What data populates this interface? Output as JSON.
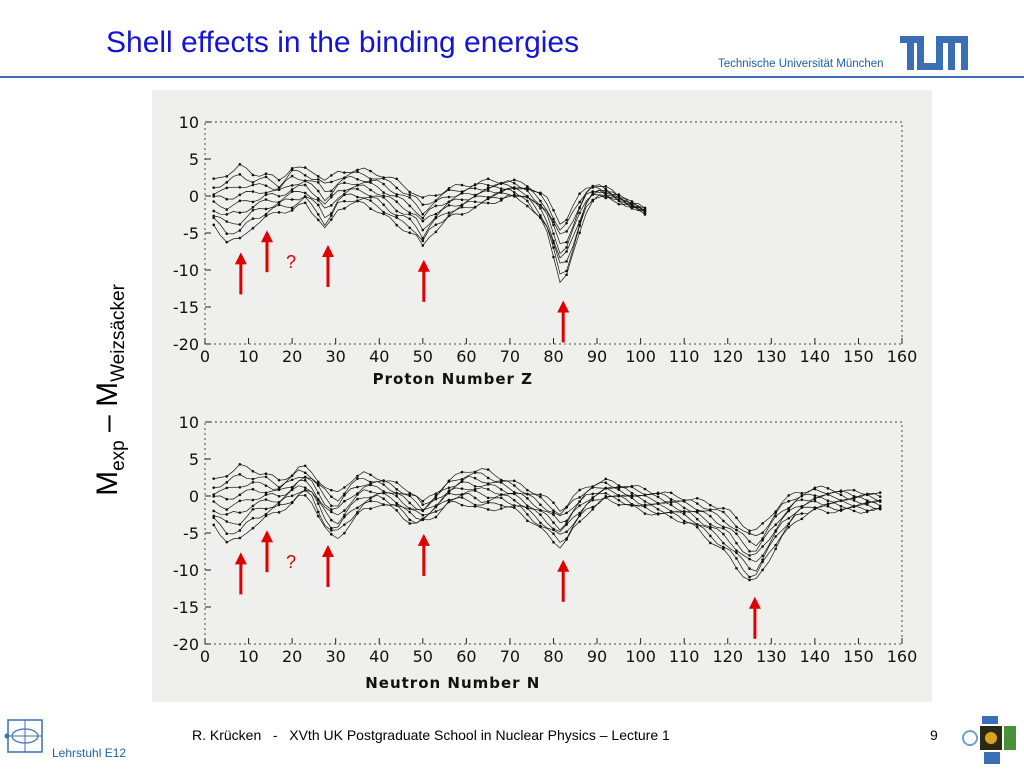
{
  "slide": {
    "title": "Shell effects in the binding energies",
    "university": "Technische Universität München",
    "footer": "R. Krücken   -   XVth UK Postgraduate School in Nuclear Physics – Lecture 1",
    "page_number": "9",
    "chair": "Lehrstuhl E12"
  },
  "y_axis_label": {
    "main": "M",
    "sub1": "exp",
    "dash": " – M",
    "sub2": "Weizsäcker"
  },
  "colors": {
    "title": "#1414d6",
    "accent": "#3b6fb5",
    "arrow": "#e00000",
    "data": "#111111"
  },
  "chart_data": [
    {
      "type": "scatter",
      "xlabel": "Proton Number Z",
      "ylabel": "",
      "xlim": [
        0,
        160
      ],
      "ylim": [
        -20,
        10
      ],
      "xticks": [
        0,
        10,
        20,
        30,
        40,
        50,
        60,
        70,
        80,
        90,
        100,
        110,
        120,
        130,
        140,
        150,
        160
      ],
      "yticks": [
        10,
        5,
        0,
        -5,
        -10,
        -15,
        -20
      ],
      "envelope": {
        "x": [
          2,
          5,
          8,
          11,
          14,
          17,
          20,
          23,
          26,
          28,
          30,
          33,
          36,
          40,
          44,
          48,
          50,
          52,
          56,
          60,
          65,
          70,
          74,
          78,
          80,
          82,
          84,
          86,
          88,
          90,
          94,
          98,
          102
        ],
        "upper": [
          2,
          3,
          4,
          3,
          3,
          2,
          4,
          3.5,
          3,
          2,
          3,
          3.5,
          3.5,
          3,
          2,
          0.5,
          -0.5,
          0,
          1,
          1.5,
          2,
          2,
          1.5,
          0,
          -2,
          -4,
          -2,
          0,
          1.5,
          1.5,
          0.5,
          -1,
          -2
        ],
        "lower": [
          -4,
          -6,
          -6,
          -4,
          -3,
          -2,
          -2,
          -1,
          -3,
          -5,
          -2,
          -1,
          -1,
          -2,
          -4,
          -5,
          -7,
          -5,
          -3,
          -2,
          -1,
          0,
          -1,
          -4,
          -8,
          -12.5,
          -9,
          -5,
          -1,
          0,
          -0.5,
          -1.5,
          -2.5
        ]
      },
      "annotations": [
        {
          "x": 8,
          "label": ""
        },
        {
          "x": 14,
          "label": "?"
        },
        {
          "x": 28,
          "label": ""
        },
        {
          "x": 50,
          "label": ""
        },
        {
          "x": 82,
          "label": ""
        }
      ]
    },
    {
      "type": "scatter",
      "xlabel": "Neutron Number N",
      "ylabel": "",
      "xlim": [
        0,
        160
      ],
      "ylim": [
        -20,
        10
      ],
      "xticks": [
        0,
        10,
        20,
        30,
        40,
        50,
        60,
        70,
        80,
        90,
        100,
        110,
        120,
        130,
        140,
        150,
        160
      ],
      "yticks": [
        10,
        5,
        0,
        -5,
        -10,
        -15,
        -20
      ],
      "envelope": {
        "x": [
          2,
          5,
          8,
          11,
          14,
          17,
          20,
          22,
          24,
          28,
          30,
          33,
          36,
          40,
          44,
          48,
          50,
          52,
          56,
          60,
          64,
          68,
          72,
          76,
          80,
          82,
          84,
          88,
          92,
          96,
          100,
          104,
          108,
          112,
          116,
          120,
          124,
          126,
          128,
          132,
          136,
          140,
          144,
          148,
          152,
          156
        ],
        "upper": [
          2,
          3,
          4,
          3.5,
          3,
          2,
          3,
          4,
          3.5,
          1,
          0,
          2,
          3,
          2.5,
          1.5,
          0.5,
          -1,
          0,
          2,
          3.5,
          3.5,
          2.5,
          1.5,
          0.5,
          -1,
          -2,
          -0.5,
          1.5,
          2,
          1.5,
          1,
          0.5,
          0,
          -0.5,
          -1,
          -2,
          -4,
          -5,
          -4,
          -1,
          0.5,
          1,
          1,
          0.5,
          0.5,
          0
        ],
        "lower": [
          -4,
          -6,
          -6,
          -4,
          -3,
          -2,
          -1,
          0,
          0,
          -5,
          -6,
          -4,
          -2,
          -1,
          -2,
          -4,
          -3.5,
          -3,
          -1,
          -1,
          -2,
          -1.5,
          -2,
          -4,
          -6,
          -7,
          -5,
          -2,
          -0.5,
          -1,
          -2,
          -2.5,
          -3,
          -4,
          -6,
          -8,
          -11,
          -12,
          -10,
          -6,
          -3,
          -2,
          -2,
          -2,
          -2,
          -2
        ]
      },
      "annotations": [
        {
          "x": 8,
          "label": ""
        },
        {
          "x": 14,
          "label": "?"
        },
        {
          "x": 28,
          "label": ""
        },
        {
          "x": 50,
          "label": ""
        },
        {
          "x": 82,
          "label": ""
        },
        {
          "x": 126,
          "label": ""
        }
      ]
    }
  ]
}
